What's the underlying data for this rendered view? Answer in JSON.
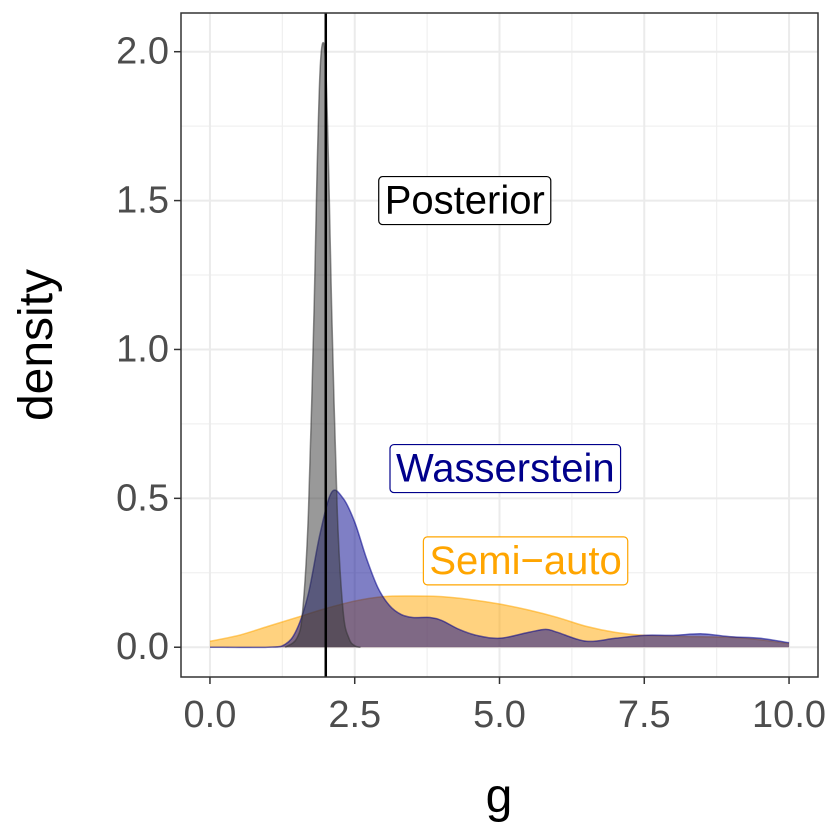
{
  "chart_data": {
    "type": "area",
    "xlabel": "g",
    "ylabel": "density",
    "xlim": [
      -0.5,
      10.5
    ],
    "ylim": [
      -0.1,
      2.13
    ],
    "x_ticks": [
      0,
      2.5,
      5,
      7.5,
      10
    ],
    "x_tick_labels": [
      "0.0",
      "2.5",
      "5.0",
      "7.5",
      "10.0"
    ],
    "y_ticks": [
      0,
      0.5,
      1,
      1.5,
      2
    ],
    "y_tick_labels": [
      "0.0",
      "0.5",
      "1.0",
      "1.5",
      "2.0"
    ],
    "grid": true,
    "vline": 2.0,
    "series": [
      {
        "name": "Semi-auto",
        "color": "#FFA500",
        "x": [
          0.0,
          0.5,
          1.0,
          1.5,
          2.0,
          2.5,
          3.0,
          3.5,
          4.0,
          4.5,
          5.0,
          5.5,
          6.0,
          6.5,
          7.0,
          7.5,
          8.0,
          8.5,
          9.0,
          9.5,
          10.0
        ],
        "values": [
          0.02,
          0.04,
          0.07,
          0.1,
          0.13,
          0.155,
          0.17,
          0.172,
          0.17,
          0.16,
          0.145,
          0.125,
          0.1,
          0.07,
          0.05,
          0.04,
          0.037,
          0.035,
          0.033,
          0.025,
          0.012
        ]
      },
      {
        "name": "Wasserstein",
        "color": "#00008B",
        "x": [
          0.0,
          1.0,
          1.3,
          1.5,
          1.7,
          1.9,
          2.1,
          2.3,
          2.5,
          2.7,
          2.9,
          3.1,
          3.3,
          3.5,
          3.8,
          4.0,
          4.3,
          4.6,
          5.0,
          5.5,
          5.8,
          6.0,
          6.5,
          7.0,
          7.5,
          8.0,
          8.5,
          9.0,
          9.5,
          10.0
        ],
        "values": [
          0.0,
          0.0,
          0.01,
          0.06,
          0.18,
          0.38,
          0.52,
          0.5,
          0.42,
          0.3,
          0.2,
          0.14,
          0.11,
          0.1,
          0.1,
          0.09,
          0.06,
          0.04,
          0.03,
          0.05,
          0.06,
          0.05,
          0.02,
          0.03,
          0.04,
          0.04,
          0.045,
          0.035,
          0.03,
          0.015
        ]
      },
      {
        "name": "Posterior",
        "color": "#333333",
        "x": [
          1.3,
          1.5,
          1.6,
          1.7,
          1.8,
          1.85,
          1.9,
          1.95,
          2.0,
          2.05,
          2.1,
          2.2,
          2.3,
          2.4,
          2.5,
          2.6
        ],
        "values": [
          0.0,
          0.03,
          0.12,
          0.45,
          1.15,
          1.6,
          1.93,
          2.03,
          1.95,
          1.6,
          1.15,
          0.45,
          0.12,
          0.03,
          0.005,
          0.0
        ]
      }
    ],
    "annotations": [
      {
        "text": "Posterior",
        "x": 4.4,
        "y": 1.5,
        "color": "#000000"
      },
      {
        "text": "Wasserstein",
        "x": 5.1,
        "y": 0.6,
        "color": "#00008B"
      },
      {
        "text": "Semi−auto",
        "x": 5.45,
        "y": 0.29,
        "color": "#FFA500"
      }
    ]
  }
}
